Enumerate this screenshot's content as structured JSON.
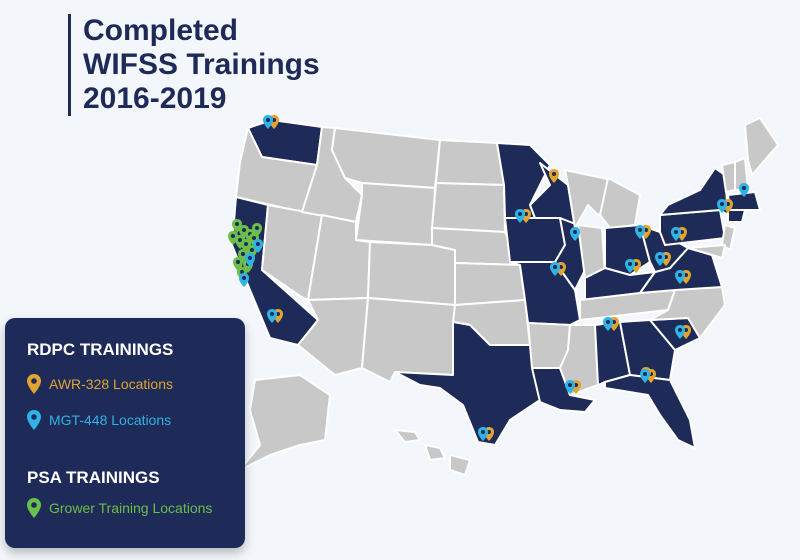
{
  "title": {
    "line1": "Completed",
    "line2": "WIFSS Trainings",
    "line3": "2016-2019"
  },
  "colors": {
    "highlight_state": "#1e2a57",
    "other_state": "#c8c8c8",
    "background": "#f3f7fb",
    "awr": "#e0a431",
    "mgt": "#2fb3e4",
    "grower": "#6abf4b"
  },
  "legend": {
    "rdpc_heading": "RDPC TRAININGS",
    "awr_label": "AWR-328 Locations",
    "mgt_label": "MGT-448 Locations",
    "psa_heading": "PSA TRAININGS",
    "grower_label": "Grower Training Locations"
  },
  "highlighted_states": [
    "WA",
    "CA",
    "TX",
    "MN",
    "WI",
    "IA",
    "IL",
    "MO",
    "LA",
    "AL",
    "GA",
    "SC",
    "FL",
    "KY",
    "OH",
    "WV",
    "VA",
    "PA",
    "NY",
    "MA",
    "CT"
  ],
  "markers": {
    "awr": [
      "Washington",
      "Michigan",
      "Iowa",
      "Ohio",
      "Pennsylvania",
      "Kentucky",
      "Virginia",
      "South Carolina",
      "Louisiana",
      "Texas",
      "Alabama",
      "Georgia",
      "Florida",
      "California",
      "Missouri",
      "West Virginia",
      "New York"
    ],
    "mgt": [
      "Washington",
      "California",
      "Iowa",
      "Illinois",
      "Missouri",
      "Ohio",
      "Pennsylvania",
      "Kentucky",
      "West Virginia",
      "Virginia",
      "South Carolina",
      "Georgia",
      "Alabama",
      "Louisiana",
      "Texas",
      "New York",
      "Massachusetts"
    ],
    "grower": [
      "California"
    ]
  }
}
